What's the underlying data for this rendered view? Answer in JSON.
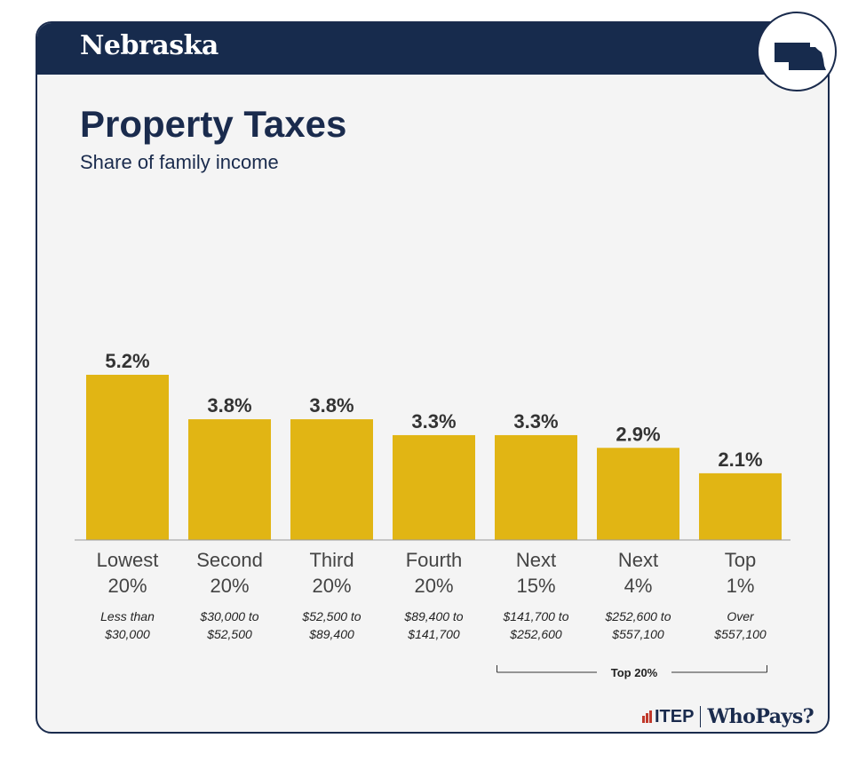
{
  "header": {
    "state": "Nebraska"
  },
  "chart_data": {
    "type": "bar",
    "title": "Property Taxes",
    "subtitle": "Share of family income",
    "categories": [
      {
        "group_line1": "Lowest",
        "group_line2": "20%",
        "range_line1": "Less than",
        "range_line2": "$30,000"
      },
      {
        "group_line1": "Second",
        "group_line2": "20%",
        "range_line1": "$30,000 to",
        "range_line2": "$52,500"
      },
      {
        "group_line1": "Third",
        "group_line2": "20%",
        "range_line1": "$52,500 to",
        "range_line2": "$89,400"
      },
      {
        "group_line1": "Fourth",
        "group_line2": "20%",
        "range_line1": "$89,400 to",
        "range_line2": "$141,700"
      },
      {
        "group_line1": "Next",
        "group_line2": "15%",
        "range_line1": "$141,700 to",
        "range_line2": "$252,600"
      },
      {
        "group_line1": "Next",
        "group_line2": "4%",
        "range_line1": "$252,600 to",
        "range_line2": "$557,100"
      },
      {
        "group_line1": "Top",
        "group_line2": "1%",
        "range_line1": "Over",
        "range_line2": "$557,100"
      }
    ],
    "values": [
      5.2,
      3.8,
      3.8,
      3.3,
      3.3,
      2.9,
      2.1
    ],
    "value_labels": [
      "5.2%",
      "3.8%",
      "3.8%",
      "3.3%",
      "3.3%",
      "2.9%",
      "2.1%"
    ],
    "ylim": [
      0,
      5.2
    ],
    "bar_color": "#e1b514",
    "grid": false,
    "bracket": {
      "label": "Top 20%",
      "from_index": 4,
      "to_index": 6
    }
  },
  "footer": {
    "org": "ITEP",
    "brand": "WhoPays?"
  },
  "colors": {
    "navy": "#172b4d",
    "bar": "#e1b514",
    "background": "#f4f4f4"
  },
  "icons": {
    "state_outline": "nebraska-map-icon"
  }
}
